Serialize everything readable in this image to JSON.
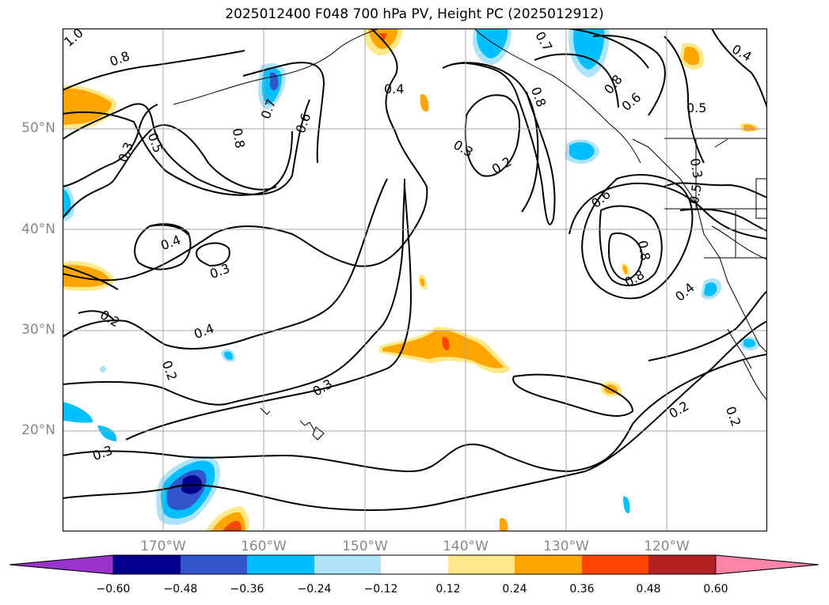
{
  "title": "2025012400 F048 700 hPa PV, Height PC (2025012912)",
  "lat_labels": [
    "50°N",
    "40°N",
    "30°N",
    "20°N"
  ],
  "lon_labels": [
    "170°W",
    "160°W",
    "150°W",
    "140°W",
    "130°W",
    "120°W"
  ],
  "colorbar": {
    "ticks": [
      "−0.60",
      "−0.48",
      "−0.36",
      "−0.24",
      "−0.12",
      "0.12",
      "0.24",
      "0.36",
      "0.48",
      "0.60"
    ],
    "colors": [
      "#9933cc",
      "#00008b",
      "#3355cc",
      "#00bfff",
      "#aee3fa",
      "#ffffff",
      "#ffe88a",
      "#ffa500",
      "#ff4500",
      "#b22222",
      "#ff85a8"
    ]
  },
  "contour_labels": [
    "1.0",
    "0.8",
    "0.3",
    "0.5",
    "0.8",
    "0.7",
    "0.6",
    "0.4",
    "0.3",
    "0.2",
    "0.7",
    "0.8",
    "0.8",
    "0.6",
    "0.4",
    "0.5",
    "0.6",
    "0.5",
    "0.4",
    "0.3",
    "0.3",
    "0.4",
    "0.2",
    "0.2",
    "0.3",
    "0.8",
    "0.8",
    "0.4",
    "0.3",
    "0.2",
    "0.2"
  ]
}
